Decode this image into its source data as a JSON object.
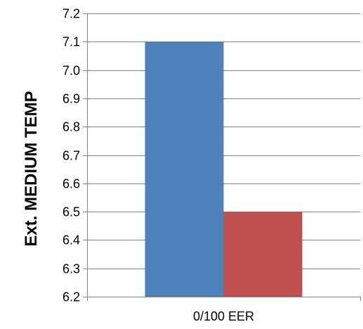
{
  "chart_data": {
    "type": "bar",
    "categories": [
      "0/100 EER"
    ],
    "series": [
      {
        "values": [
          7.1
        ],
        "color": "#4F81BD"
      },
      {
        "values": [
          6.5
        ],
        "color": "#C0504D"
      }
    ],
    "title": "",
    "xlabel": "",
    "ylabel": "Ext. MEDIUM TEMP",
    "ylim": [
      6.2,
      7.2
    ],
    "yticks": [
      "6.2",
      "6.3",
      "6.4",
      "6.5",
      "6.6",
      "6.7",
      "6.8",
      "6.9",
      "7.0",
      "7.1",
      "7.2"
    ],
    "grid": true,
    "legend": "none"
  }
}
